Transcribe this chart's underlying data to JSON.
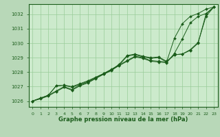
{
  "background_color": "#b8d8b8",
  "plot_bg_color": "#cceacc",
  "grid_color": "#99cc99",
  "line_color": "#1a5c1a",
  "marker_color": "#1a5c1a",
  "xlabel": "Graphe pression niveau de la mer (hPa)",
  "ylim": [
    1025.6,
    1032.7
  ],
  "xlim": [
    -0.5,
    23.5
  ],
  "yticks": [
    1026,
    1027,
    1028,
    1029,
    1030,
    1031,
    1032
  ],
  "xticks": [
    0,
    1,
    2,
    3,
    4,
    5,
    6,
    7,
    8,
    9,
    10,
    11,
    12,
    13,
    14,
    15,
    16,
    17,
    18,
    19,
    20,
    21,
    22,
    23
  ],
  "series": [
    [
      1026.0,
      1026.2,
      1026.4,
      1026.7,
      1027.0,
      1026.8,
      1027.1,
      1027.3,
      1027.6,
      1027.9,
      1028.2,
      1028.5,
      1028.8,
      1029.1,
      1029.0,
      1028.8,
      1028.75,
      1028.7,
      1029.2,
      1029.25,
      1029.5,
      1030.0,
      1032.0,
      1032.5
    ],
    [
      1026.0,
      1026.15,
      1026.35,
      1026.65,
      1026.95,
      1026.75,
      1027.05,
      1027.25,
      1027.55,
      1027.85,
      1028.15,
      1028.45,
      1028.75,
      1029.05,
      1028.95,
      1028.75,
      1028.7,
      1028.65,
      1029.3,
      1030.3,
      1031.4,
      1031.85,
      1032.05,
      1032.5
    ],
    [
      1026.0,
      1026.2,
      1026.4,
      1027.05,
      1027.1,
      1027.0,
      1027.2,
      1027.4,
      1027.65,
      1027.9,
      1028.15,
      1028.55,
      1029.15,
      1029.25,
      1029.1,
      1029.0,
      1029.05,
      1028.75,
      1029.2,
      1029.25,
      1029.55,
      1030.05,
      1031.85,
      1032.5
    ],
    [
      1026.0,
      1026.2,
      1026.4,
      1027.05,
      1027.1,
      1026.95,
      1027.15,
      1027.35,
      1027.6,
      1027.85,
      1028.1,
      1028.5,
      1029.1,
      1029.2,
      1029.05,
      1028.95,
      1029.0,
      1028.7,
      1030.35,
      1031.35,
      1031.85,
      1032.05,
      1032.35,
      1032.5
    ]
  ],
  "figsize": [
    3.2,
    2.0
  ],
  "dpi": 100
}
